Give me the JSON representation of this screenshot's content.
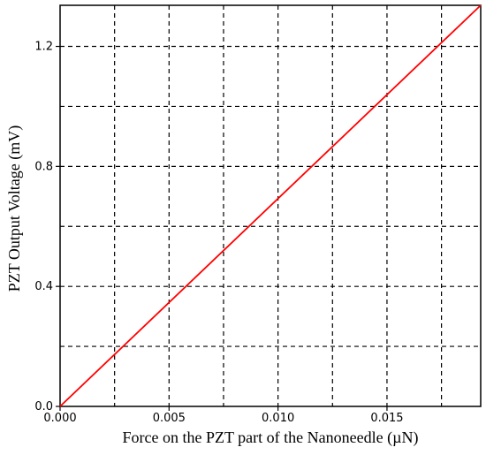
{
  "chart_data": {
    "type": "line",
    "xlabel": "Force on the PZT part  of the Nanoneedle (µN)",
    "ylabel": "PZT Output Voltage (mV)",
    "xlim": [
      0,
      0.0193
    ],
    "ylim": [
      0,
      1.337
    ],
    "x_ticks": [
      0.0,
      0.005,
      0.01,
      0.015
    ],
    "x_tick_labels": [
      "0.000",
      "0.005",
      "0.010",
      "0.015"
    ],
    "x_grid": [
      0.0025,
      0.005,
      0.0075,
      0.01,
      0.0125,
      0.015,
      0.0175
    ],
    "y_ticks": [
      0.0,
      0.4,
      0.8,
      1.2
    ],
    "y_tick_labels": [
      "0.0",
      "0.4",
      "0.8",
      "1.2"
    ],
    "y_grid": [
      0.2,
      0.4,
      0.6,
      0.8,
      1.0,
      1.2
    ],
    "grid": true,
    "series": [
      {
        "color": "#ff0000",
        "x": [
          0.0,
          0.0193
        ],
        "y": [
          0.0,
          1.337
        ]
      }
    ]
  }
}
